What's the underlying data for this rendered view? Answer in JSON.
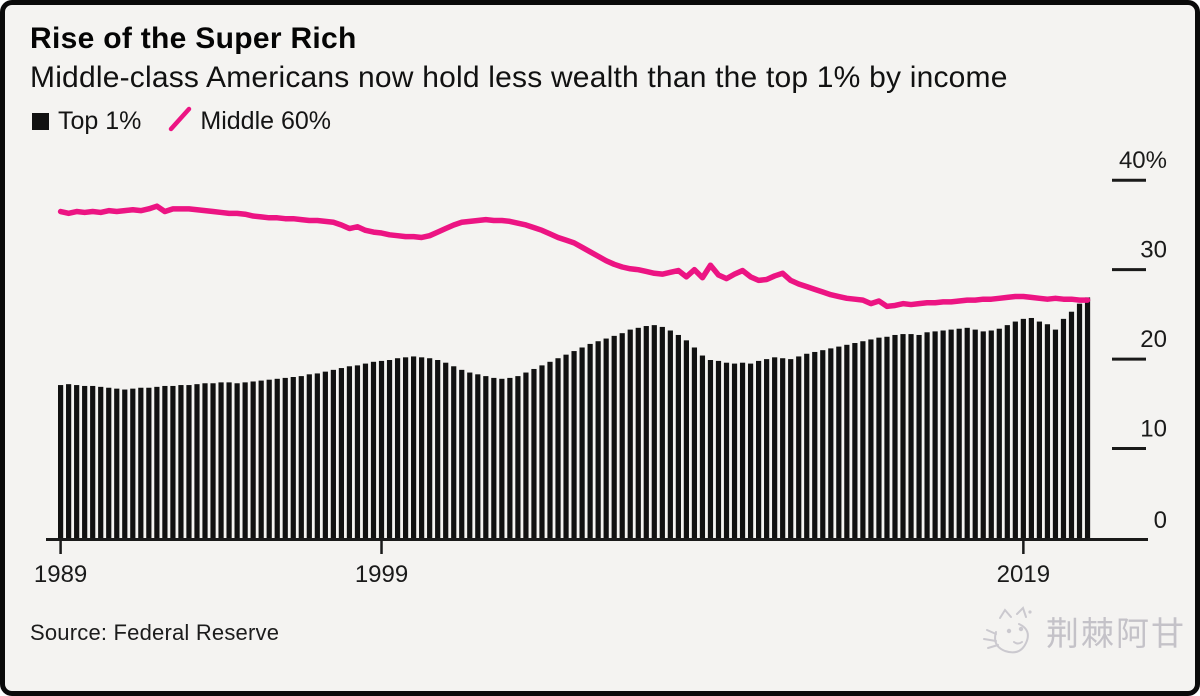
{
  "header": {
    "title": "Rise of the Super Rich",
    "subtitle": "Middle-class Americans now hold less wealth than the top 1% by income"
  },
  "legend": {
    "items": [
      {
        "label": "Top 1%",
        "marker": "square",
        "color": "#111111"
      },
      {
        "label": "Middle 60%",
        "marker": "slash",
        "color": "#EC1483"
      }
    ]
  },
  "source": {
    "text": "Source: Federal Reserve"
  },
  "watermark": {
    "text": "荆棘阿甘",
    "icon": "cat-doodle-icon"
  },
  "colors": {
    "background": "#F4F3F1",
    "border": "#0A0A0A",
    "bar": "#111111",
    "line": "#EC1483",
    "axis": "#1A1A1A",
    "tick_text": "#1A1A1A",
    "watermark": "#C4C2C8"
  },
  "chart_data": {
    "type": "bar",
    "title": "Rise of the Super Rich",
    "subtitle": "Middle-class Americans now hold less wealth than the top 1% by income",
    "frequency": "quarterly",
    "x_range": "1989Q1 - 2021Q1",
    "y_unit": "%",
    "ylim": [
      0,
      40
    ],
    "grid": false,
    "legend_position": "top-left",
    "x_ticks": [
      {
        "label": "1989",
        "index": 0
      },
      {
        "label": "1999",
        "index": 40
      },
      {
        "label": "2019",
        "index": 120
      }
    ],
    "y_ticks": [
      {
        "label": "40%",
        "value": 40
      },
      {
        "label": "30",
        "value": 30
      },
      {
        "label": "20",
        "value": 20
      },
      {
        "label": "10",
        "value": 10
      },
      {
        "label": "0",
        "value": 0
      }
    ],
    "series": [
      {
        "name": "Top 1%",
        "type": "bar",
        "color": "#111111",
        "values": [
          17.1,
          17.2,
          17.1,
          17.0,
          17.0,
          16.9,
          16.8,
          16.7,
          16.6,
          16.7,
          16.8,
          16.8,
          16.9,
          17.0,
          17.0,
          17.1,
          17.1,
          17.2,
          17.3,
          17.3,
          17.4,
          17.4,
          17.3,
          17.4,
          17.5,
          17.6,
          17.7,
          17.8,
          17.9,
          18.0,
          18.1,
          18.3,
          18.4,
          18.6,
          18.8,
          19.0,
          19.2,
          19.3,
          19.5,
          19.7,
          19.8,
          19.9,
          20.1,
          20.2,
          20.3,
          20.2,
          20.1,
          19.9,
          19.6,
          19.2,
          18.8,
          18.5,
          18.3,
          18.1,
          17.9,
          17.8,
          17.9,
          18.1,
          18.5,
          18.9,
          19.3,
          19.7,
          20.1,
          20.5,
          20.9,
          21.3,
          21.7,
          22.0,
          22.3,
          22.6,
          22.9,
          23.3,
          23.5,
          23.7,
          23.8,
          23.6,
          23.2,
          22.7,
          22.1,
          21.3,
          20.4,
          19.9,
          19.8,
          19.6,
          19.5,
          19.6,
          19.5,
          19.8,
          20.0,
          20.2,
          20.1,
          20.0,
          20.3,
          20.6,
          20.8,
          21.0,
          21.2,
          21.4,
          21.6,
          21.8,
          22.0,
          22.2,
          22.4,
          22.5,
          22.7,
          22.8,
          22.8,
          22.7,
          23.0,
          23.1,
          23.2,
          23.3,
          23.4,
          23.5,
          23.3,
          23.1,
          23.2,
          23.4,
          23.8,
          24.2,
          24.5,
          24.6,
          24.2,
          23.9,
          23.3,
          24.5,
          25.3,
          26.2,
          26.9
        ]
      },
      {
        "name": "Middle 60%",
        "type": "line",
        "color": "#EC1483",
        "values": [
          36.5,
          36.3,
          36.5,
          36.4,
          36.5,
          36.4,
          36.6,
          36.5,
          36.6,
          36.7,
          36.6,
          36.8,
          37.1,
          36.5,
          36.8,
          36.8,
          36.8,
          36.7,
          36.6,
          36.5,
          36.4,
          36.3,
          36.3,
          36.2,
          36.0,
          35.9,
          35.8,
          35.8,
          35.7,
          35.7,
          35.6,
          35.5,
          35.5,
          35.4,
          35.3,
          35.0,
          34.6,
          34.8,
          34.4,
          34.2,
          34.1,
          33.9,
          33.8,
          33.7,
          33.7,
          33.6,
          33.8,
          34.2,
          34.6,
          35.0,
          35.3,
          35.4,
          35.5,
          35.6,
          35.5,
          35.5,
          35.4,
          35.2,
          35.0,
          34.7,
          34.4,
          34.0,
          33.6,
          33.3,
          33.0,
          32.5,
          32.0,
          31.5,
          31.0,
          30.6,
          30.3,
          30.1,
          30.0,
          29.8,
          29.6,
          29.5,
          29.7,
          29.9,
          29.2,
          30.0,
          29.1,
          30.5,
          29.4,
          29.0,
          29.5,
          29.9,
          29.2,
          28.8,
          28.9,
          29.3,
          29.6,
          28.8,
          28.4,
          28.1,
          27.8,
          27.5,
          27.2,
          27.0,
          26.8,
          26.7,
          26.6,
          26.2,
          26.5,
          25.9,
          26.0,
          26.2,
          26.1,
          26.2,
          26.3,
          26.3,
          26.4,
          26.4,
          26.5,
          26.6,
          26.6,
          26.7,
          26.7,
          26.8,
          26.9,
          27.0,
          27.0,
          26.9,
          26.8,
          26.7,
          26.8,
          26.7,
          26.7,
          26.6,
          26.6
        ]
      }
    ]
  }
}
